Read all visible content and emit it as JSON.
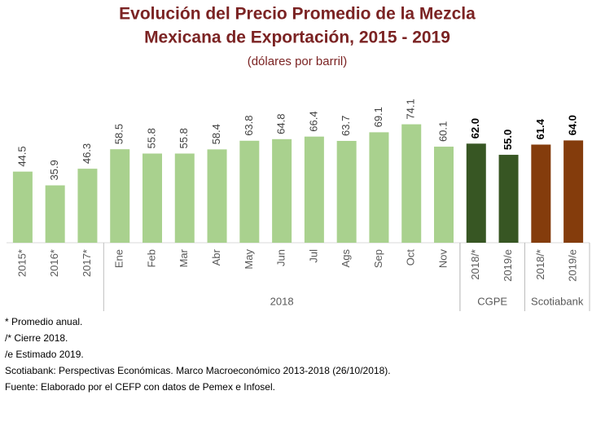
{
  "chart_data": {
    "type": "bar",
    "title": [
      "Evolución del Precio Promedio de la Mezcla",
      "Mexicana de Exportación, 2015 - 2019"
    ],
    "subtitle": "(dólares por barril)",
    "categories": [
      "2015*",
      "2016*",
      "2017*",
      "Ene",
      "Feb",
      "Mar",
      "Abr",
      "May",
      "Jun",
      "Jul",
      "Ags",
      "Sep",
      "Oct",
      "Nov",
      "2018/*",
      "2019/e",
      "2018/*",
      "2019/e"
    ],
    "values": [
      44.5,
      35.9,
      46.3,
      58.5,
      55.8,
      55.8,
      58.4,
      63.8,
      64.8,
      66.4,
      63.7,
      69.1,
      74.1,
      60.1,
      62.0,
      55.0,
      61.4,
      64.0
    ],
    "value_labels": [
      "44.5",
      "35.9",
      "46.3",
      "58.5",
      "55.8",
      "55.8",
      "58.4",
      "63.8",
      "64.8",
      "66.4",
      "63.7",
      "69.1",
      "74.1",
      "60.1",
      "62.0",
      "55.0",
      "61.4",
      "64.0"
    ],
    "colors": [
      "#a9d18e",
      "#a9d18e",
      "#a9d18e",
      "#a9d18e",
      "#a9d18e",
      "#a9d18e",
      "#a9d18e",
      "#a9d18e",
      "#a9d18e",
      "#a9d18e",
      "#a9d18e",
      "#a9d18e",
      "#a9d18e",
      "#a9d18e",
      "#375623",
      "#375623",
      "#843c0c",
      "#843c0c"
    ],
    "groups": [
      {
        "label": "2018",
        "from": 3,
        "to": 13
      },
      {
        "label": "CGPE",
        "from": 14,
        "to": 15
      },
      {
        "label": "Scotiabank",
        "from": 16,
        "to": 17
      }
    ],
    "ylim": [
      0,
      80
    ],
    "notes": [
      "* Promedio anual.",
      "/* Cierre 2018.",
      "/e Estimado 2019.",
      "Scotiabank: Perspectivas Económicas. Marco Macroeconómico 2013-2018 (26/10/2018).",
      "Fuente: Elaborado por el CEFP con datos de Pemex e Infosel."
    ]
  }
}
